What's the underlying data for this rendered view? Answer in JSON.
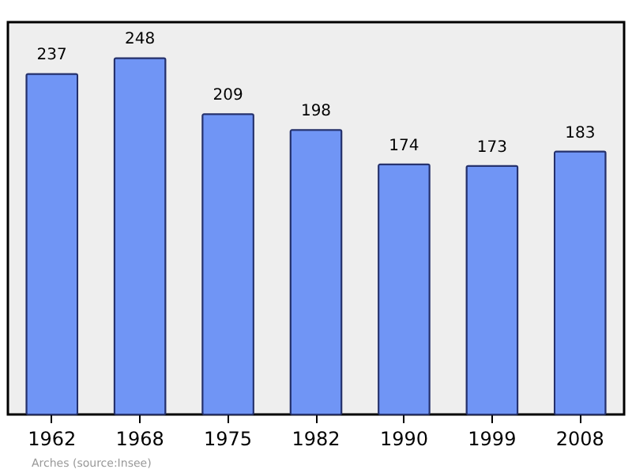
{
  "chart_data": {
    "type": "bar",
    "categories": [
      "1962",
      "1968",
      "1975",
      "1982",
      "1990",
      "1999",
      "2008"
    ],
    "values": [
      237,
      248,
      209,
      198,
      174,
      173,
      183
    ],
    "color": "#7095f5",
    "ylim": [
      0,
      273
    ],
    "tick_labels": "x",
    "data_labels": true,
    "grid": false,
    "annotations": [
      "Arches    (source:Insee)"
    ]
  }
}
